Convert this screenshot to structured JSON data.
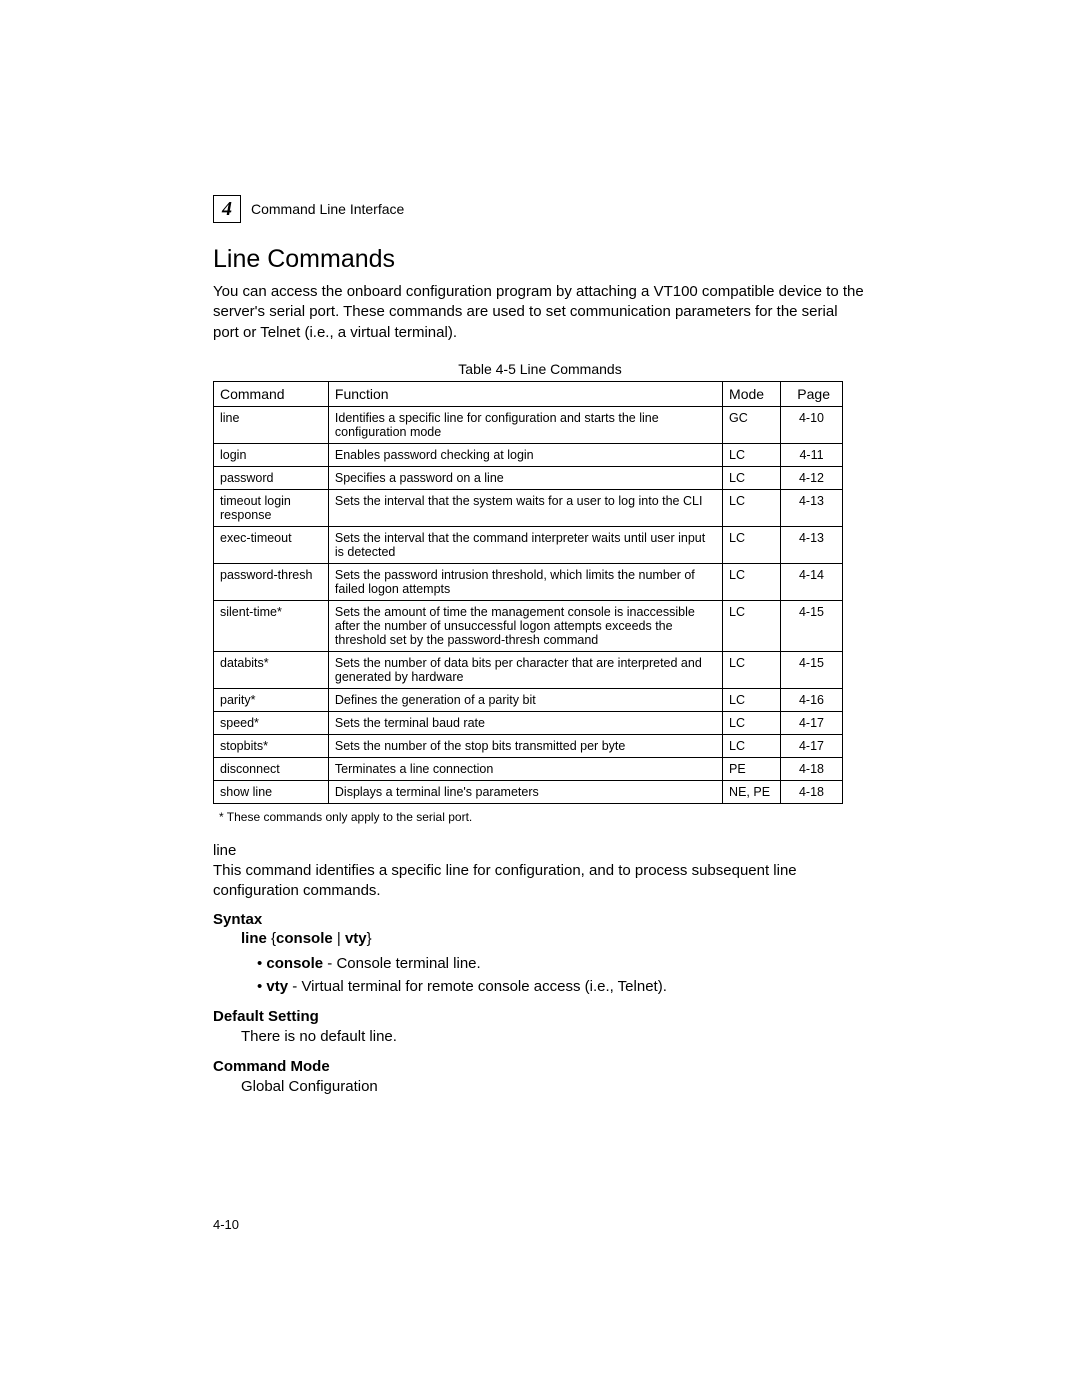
{
  "header": {
    "chapter_number": "4",
    "chapter_title": "Command Line Interface"
  },
  "section": {
    "title": "Line Commands",
    "intro": "You can access the onboard configuration program by attaching a VT100 compatible device to the server's serial port. These commands are used to set communication parameters for the serial port or Telnet (i.e., a virtual terminal)."
  },
  "table": {
    "caption": "Table 4-5  Line Commands",
    "columns": [
      "Command",
      "Function",
      "Mode",
      "Page"
    ],
    "rows": [
      {
        "cmd": "line",
        "func": "Identifies a specific line for configuration and starts the line configuration mode",
        "mode": "GC",
        "page": "4-10"
      },
      {
        "cmd": "login",
        "func": "Enables password checking at login",
        "mode": "LC",
        "page": "4-11"
      },
      {
        "cmd": "password",
        "func": "Specifies a password on a line",
        "mode": "LC",
        "page": "4-12"
      },
      {
        "cmd": "timeout login response",
        "func": "Sets the interval that the system waits for a user to log into the CLI",
        "mode": "LC",
        "page": "4-13"
      },
      {
        "cmd": "exec-timeout",
        "func": "Sets the interval that the command interpreter waits until user input is detected",
        "mode": "LC",
        "page": "4-13"
      },
      {
        "cmd": "password-thresh",
        "func": "Sets the password intrusion threshold, which limits the number of failed logon attempts",
        "mode": "LC",
        "page": "4-14"
      },
      {
        "cmd": "silent-time*",
        "func": "Sets the amount of time the management console is inaccessible after the number of unsuccessful logon attempts exceeds the threshold set by the password-thresh command",
        "mode": "LC",
        "page": "4-15"
      },
      {
        "cmd": "databits*",
        "func": "Sets the number of data bits per character that are interpreted and generated by hardware",
        "mode": "LC",
        "page": "4-15"
      },
      {
        "cmd": "parity*",
        "func": "Defines the generation of a parity bit",
        "mode": "LC",
        "page": "4-16"
      },
      {
        "cmd": "speed*",
        "func": "Sets the terminal baud rate",
        "mode": "LC",
        "page": "4-17"
      },
      {
        "cmd": "stopbits*",
        "func": "Sets the number of the stop bits transmitted per byte",
        "mode": "LC",
        "page": "4-17"
      },
      {
        "cmd": "disconnect",
        "func": "Terminates a line connection",
        "mode": "PE",
        "page": "4-18"
      },
      {
        "cmd": "show line",
        "func": "Displays a terminal line's parameters",
        "mode": "NE, PE",
        "page": "4-18"
      }
    ],
    "note": "* These commands only apply to the serial port."
  },
  "command_detail": {
    "name": "line",
    "description": "This command identifies a specific line for configuration, and to process subsequent line configuration commands.",
    "syntax_label": "Syntax",
    "syntax_line_prefix": "line",
    "syntax_line_options": "console | vty",
    "bullets": [
      {
        "term": "console",
        "desc": " - Console terminal line."
      },
      {
        "term": "vty",
        "desc": " - Virtual terminal for remote console access (i.e., Telnet)."
      }
    ],
    "default_label": "Default Setting",
    "default_text": "There is no default line.",
    "mode_label": "Command Mode",
    "mode_text": "Global Configuration"
  },
  "pagenum": "4-10"
}
